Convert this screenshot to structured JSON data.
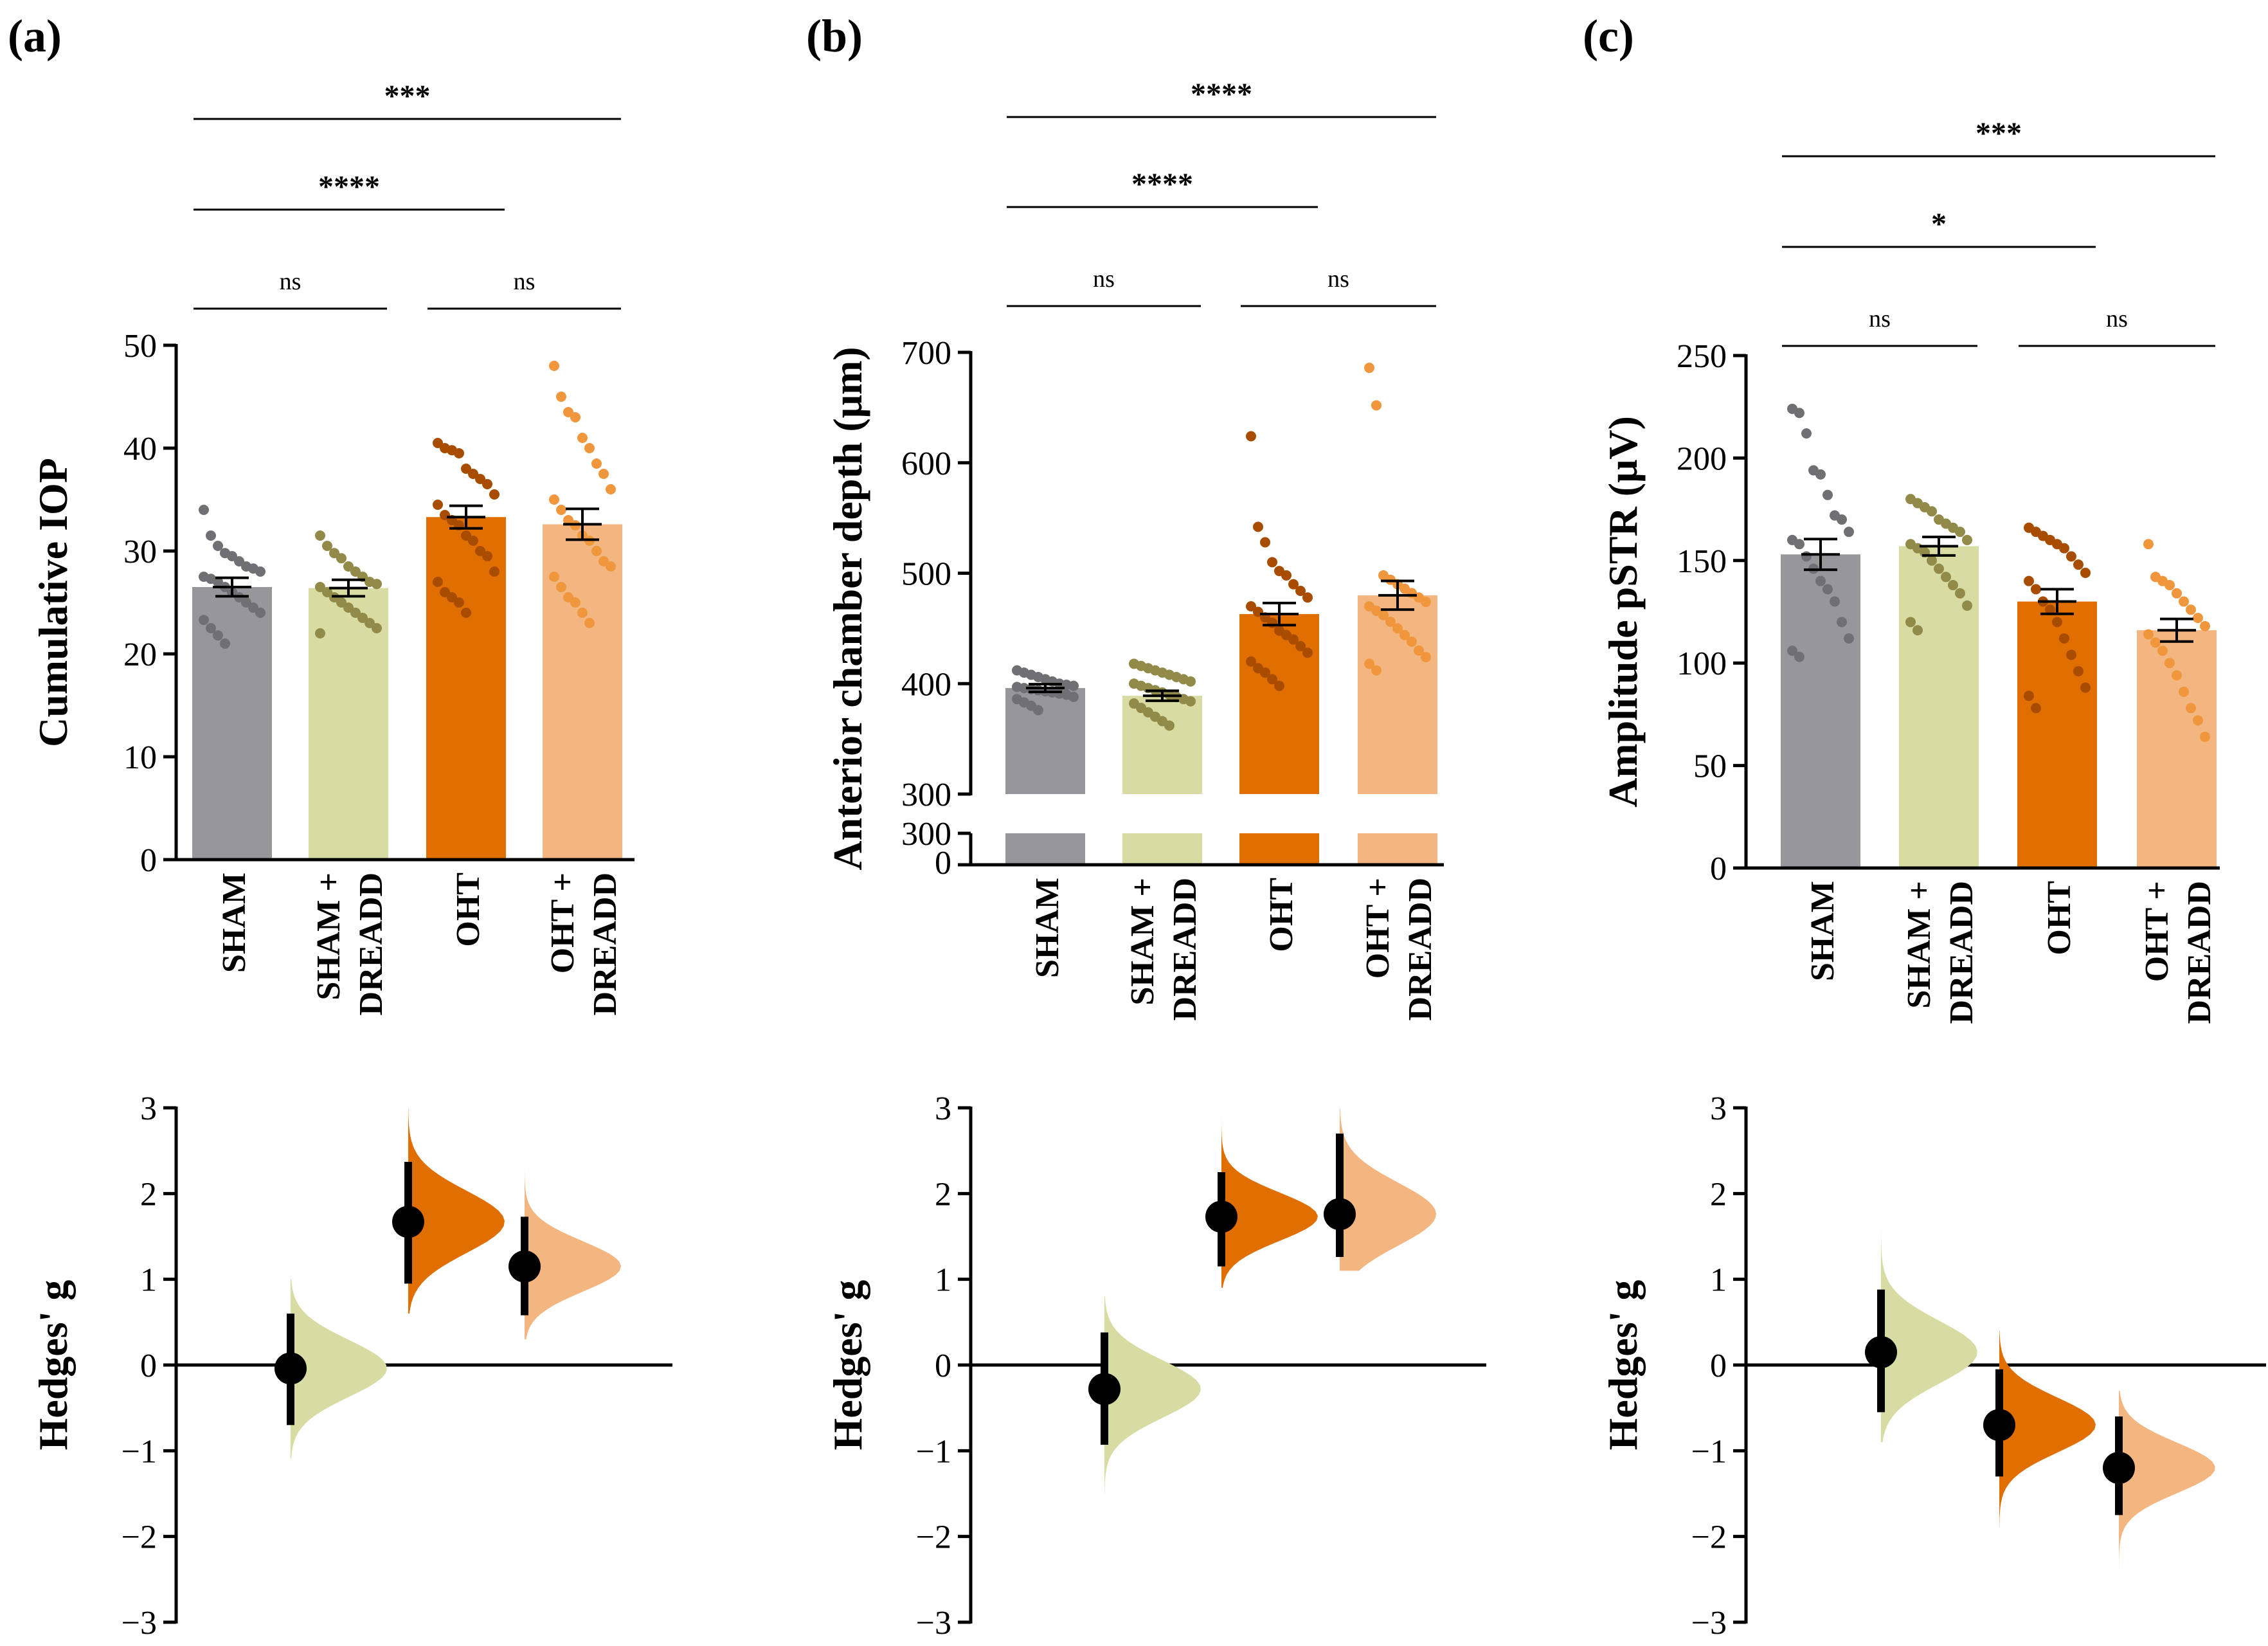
{
  "colors": {
    "SHAM": "#97979b",
    "SHAM + DREADD": "#d8dca3",
    "OHT": "#e06e00",
    "OHT + DREADD": "#f3b680",
    "dots": {
      "SHAM": "#707074",
      "SHAM + DREADD": "#918a48",
      "OHT": "#a84d00",
      "OHT + DREADD": "#f0973e"
    }
  },
  "chart_data": [
    {
      "panel": "(a)",
      "type": "bar",
      "categories": [
        "SHAM",
        "SHAM + DREADD",
        "OHT",
        "OHT + DREADD"
      ],
      "cat_lines": [
        [
          "SHAM"
        ],
        [
          "SHAM +",
          "DREADD"
        ],
        [
          "OHT"
        ],
        [
          "OHT +",
          "DREADD"
        ]
      ],
      "ylabel": "Cumulative IOP",
      "ylim": [
        0,
        50
      ],
      "yticks": [
        0,
        10,
        20,
        30,
        40,
        50
      ],
      "means": [
        26.5,
        26.4,
        33.3,
        32.6
      ],
      "sem": [
        0.9,
        0.8,
        1.1,
        1.5
      ],
      "points": [
        [
          34.0,
          31.5,
          30.5,
          29.8,
          29.5,
          29.0,
          28.5,
          28.3,
          28.0,
          27.5,
          27.3,
          27.0,
          26.5,
          26.0,
          25.5,
          25.0,
          24.5,
          24.0,
          23.3,
          22.5,
          21.8,
          21.0
        ],
        [
          31.5,
          30.5,
          29.8,
          29.3,
          28.5,
          28.0,
          27.5,
          27.0,
          26.8,
          26.5,
          26.0,
          25.5,
          25.0,
          24.5,
          24.0,
          23.5,
          23.0,
          22.5,
          22.0
        ],
        [
          40.5,
          40.0,
          39.8,
          39.5,
          38.0,
          37.5,
          37.0,
          36.5,
          35.5,
          34.5,
          33.5,
          33.0,
          32.5,
          31.5,
          31.0,
          30.0,
          29.5,
          28.0,
          27.0,
          26.0,
          25.5,
          25.0,
          24.0
        ],
        [
          48.0,
          45.0,
          43.5,
          43.0,
          41.0,
          40.0,
          38.5,
          37.5,
          36.0,
          35.0,
          34.0,
          33.0,
          32.5,
          31.5,
          31.0,
          30.0,
          29.0,
          28.5,
          27.5,
          26.5,
          25.5,
          25.0,
          24.0,
          23.0
        ]
      ],
      "comparisons": [
        {
          "from": 0,
          "to": 1,
          "label": "ns"
        },
        {
          "from": 2,
          "to": 3,
          "label": "ns"
        },
        {
          "from": 0,
          "to": 2,
          "label": "****"
        },
        {
          "from": 0,
          "to": 3,
          "label": "***"
        }
      ],
      "effect": {
        "ylabel": "Hedges' g",
        "ylim": [
          -3,
          3
        ],
        "yticks": [
          -3,
          -2,
          -1,
          0,
          1,
          2,
          3
        ],
        "groups": [
          1,
          2,
          3
        ],
        "estimates": [
          -0.04,
          1.67,
          1.15
        ],
        "ci": [
          [
            -0.7,
            0.6
          ],
          [
            0.95,
            2.37
          ],
          [
            0.58,
            1.73
          ]
        ],
        "dist_range": [
          [
            -1.1,
            1.0
          ],
          [
            0.6,
            3.0
          ],
          [
            0.3,
            2.3
          ]
        ]
      }
    },
    {
      "panel": "(b)",
      "type": "bar",
      "categories": [
        "SHAM",
        "SHAM + DREADD",
        "OHT",
        "OHT + DREADD"
      ],
      "cat_lines": [
        [
          "SHAM"
        ],
        [
          "SHAM +",
          "DREADD"
        ],
        [
          "OHT"
        ],
        [
          "OHT +",
          "DREADD"
        ]
      ],
      "ylabel": "Anterior chamber depth (μm)",
      "ylim": [
        300,
        700
      ],
      "yticks": [
        300,
        400,
        500,
        600,
        700
      ],
      "lower_ticks": [
        0,
        300
      ],
      "means": [
        396,
        389,
        463,
        480
      ],
      "sem": [
        3.5,
        4.5,
        10.0,
        13.0
      ],
      "points": [
        [
          412,
          410,
          408,
          406,
          404,
          402,
          400,
          399,
          398,
          397,
          396,
          395,
          394,
          393,
          392,
          391,
          390,
          388,
          386,
          383,
          380,
          376
        ],
        [
          418,
          416,
          414,
          412,
          410,
          408,
          406,
          404,
          402,
          400,
          398,
          396,
          394,
          392,
          390,
          388,
          386,
          384,
          382,
          378,
          374,
          370,
          366,
          362
        ],
        [
          624,
          542,
          528,
          510,
          502,
          498,
          490,
          484,
          478,
          470,
          465,
          460,
          455,
          448,
          444,
          440,
          434,
          428,
          420,
          414,
          410,
          404,
          398
        ],
        [
          686,
          652,
          498,
          494,
          490,
          486,
          482,
          478,
          474,
          470,
          466,
          462,
          456,
          450,
          444,
          438,
          430,
          424,
          418,
          412
        ]
      ],
      "comparisons": [
        {
          "from": 0,
          "to": 1,
          "label": "ns"
        },
        {
          "from": 2,
          "to": 3,
          "label": "ns"
        },
        {
          "from": 0,
          "to": 2,
          "label": "****"
        },
        {
          "from": 0,
          "to": 3,
          "label": "****"
        }
      ],
      "effect": {
        "ylabel": "Hedges' g",
        "ylim": [
          -3,
          3
        ],
        "yticks": [
          -3,
          -2,
          -1,
          0,
          1,
          2,
          3
        ],
        "groups": [
          1,
          2,
          3
        ],
        "estimates": [
          -0.28,
          1.73,
          1.76
        ],
        "ci": [
          [
            -0.93,
            0.38
          ],
          [
            1.15,
            2.25
          ],
          [
            1.26,
            2.7
          ]
        ],
        "dist_range": [
          [
            -1.5,
            0.8
          ],
          [
            0.9,
            3.0
          ],
          [
            1.1,
            3.0
          ]
        ]
      }
    },
    {
      "panel": "(c)",
      "type": "bar",
      "categories": [
        "SHAM",
        "SHAM + DREADD",
        "OHT",
        "OHT + DREADD"
      ],
      "cat_lines": [
        [
          "SHAM"
        ],
        [
          "SHAM +",
          "DREADD"
        ],
        [
          "OHT"
        ],
        [
          "OHT +",
          "DREADD"
        ]
      ],
      "ylabel": "Amplitude pSTR (μV)",
      "ylim": [
        0,
        250
      ],
      "yticks": [
        0,
        50,
        100,
        150,
        200,
        250
      ],
      "means": [
        153,
        157,
        130,
        116
      ],
      "sem": [
        7.5,
        4.5,
        6.0,
        5.5
      ],
      "points": [
        [
          224,
          222,
          212,
          194,
          192,
          182,
          172,
          170,
          164,
          160,
          158,
          152,
          146,
          140,
          136,
          130,
          120,
          112,
          106,
          103
        ],
        [
          180,
          178,
          176,
          174,
          170,
          168,
          166,
          164,
          160,
          158,
          156,
          154,
          150,
          146,
          142,
          138,
          134,
          128,
          120,
          116
        ],
        [
          166,
          164,
          162,
          160,
          158,
          156,
          152,
          148,
          144,
          140,
          136,
          130,
          126,
          120,
          112,
          104,
          96,
          88,
          84,
          78
        ],
        [
          158,
          142,
          140,
          138,
          134,
          130,
          126,
          122,
          118,
          114,
          110,
          106,
          100,
          94,
          86,
          78,
          72,
          64
        ]
      ],
      "comparisons": [
        {
          "from": 0,
          "to": 1,
          "label": "ns"
        },
        {
          "from": 2,
          "to": 3,
          "label": "ns"
        },
        {
          "from": 0,
          "to": 2,
          "label": "*"
        },
        {
          "from": 0,
          "to": 3,
          "label": "***"
        }
      ],
      "effect": {
        "ylabel": "Hedges' g",
        "ylim": [
          -3,
          3
        ],
        "yticks": [
          -3,
          -2,
          -1,
          0,
          1,
          2,
          3
        ],
        "groups": [
          1,
          2,
          3
        ],
        "estimates": [
          0.15,
          -0.7,
          -1.2
        ],
        "ci": [
          [
            -0.55,
            0.88
          ],
          [
            -1.3,
            -0.05
          ],
          [
            -1.75,
            -0.6
          ]
        ],
        "dist_range": [
          [
            -0.9,
            1.6
          ],
          [
            -1.9,
            0.4
          ],
          [
            -2.5,
            -0.3
          ]
        ]
      }
    }
  ]
}
